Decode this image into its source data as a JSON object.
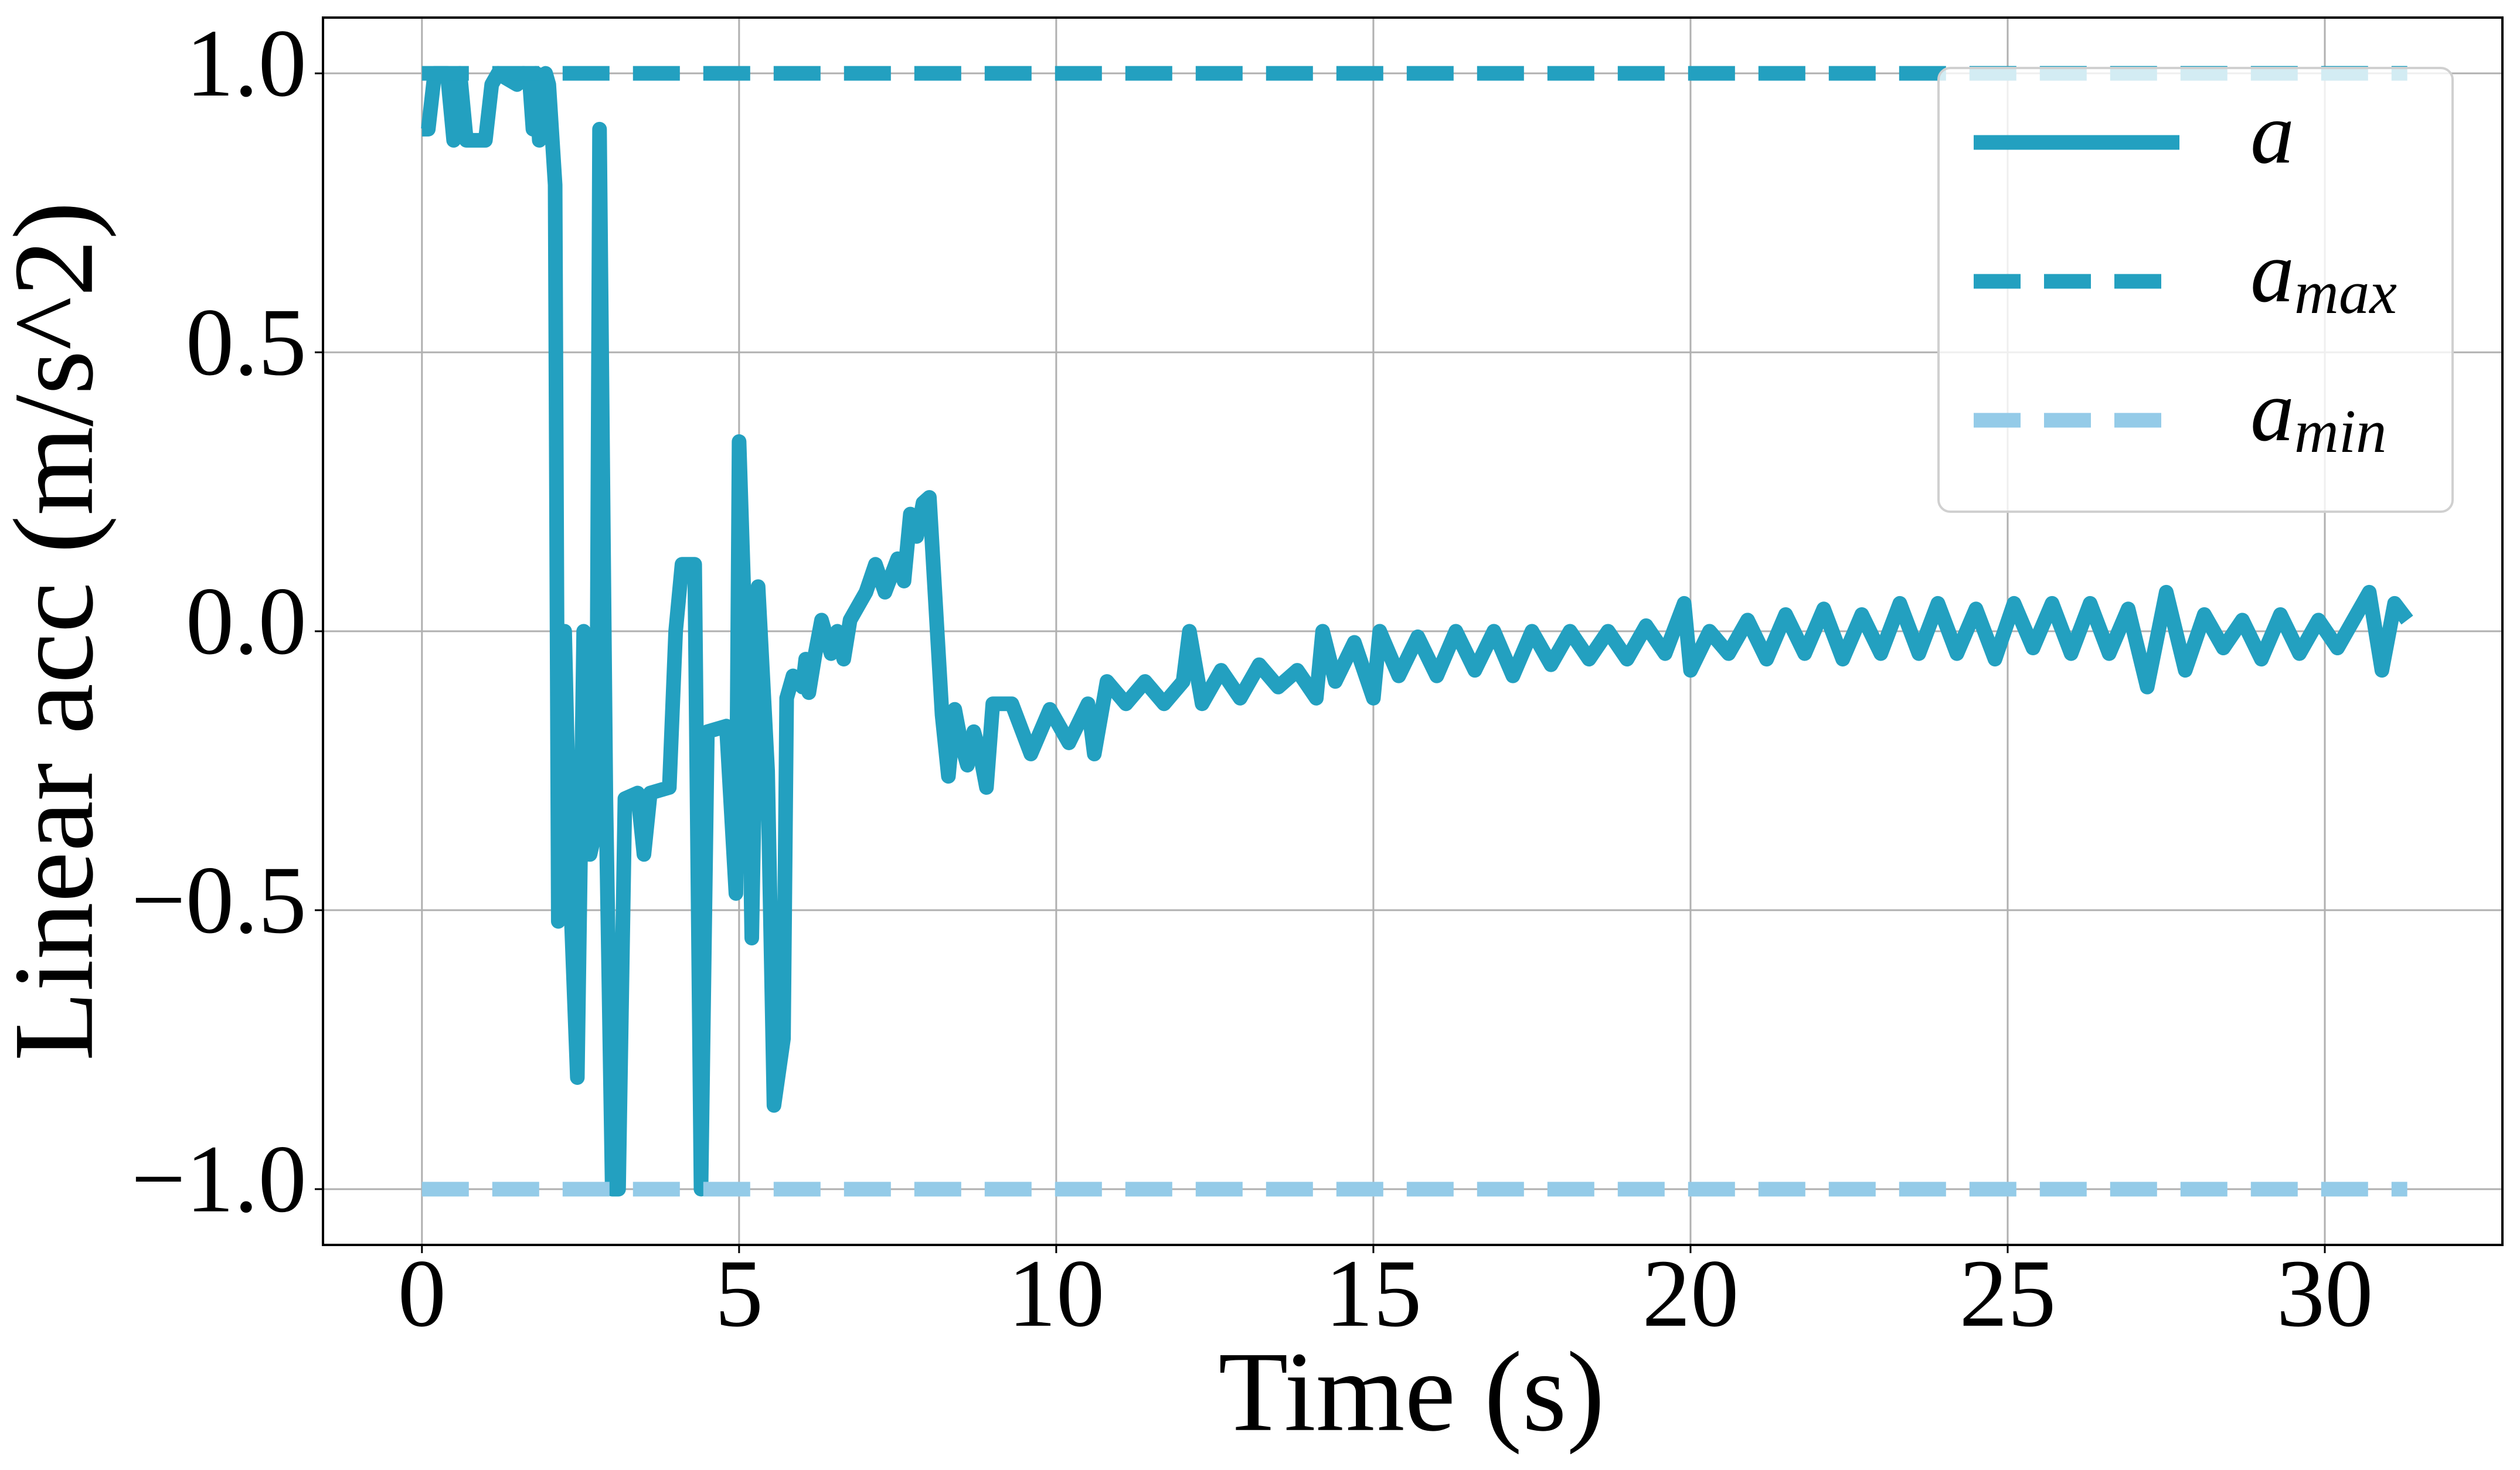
{
  "chart_data": {
    "type": "line",
    "xlabel": "Time (s)",
    "ylabel": "Linear acc (m/s^2)",
    "xlim": [
      -1.56,
      32.8
    ],
    "ylim": [
      -1.1,
      1.1
    ],
    "xticks": [
      0,
      5,
      10,
      15,
      20,
      25,
      30
    ],
    "yticks": [
      {
        "value": -1.0,
        "label": "−1.0"
      },
      {
        "value": -0.5,
        "label": "−0.5"
      },
      {
        "value": 0.0,
        "label": "0.0"
      },
      {
        "value": 0.5,
        "label": "0.5"
      },
      {
        "value": 1.0,
        "label": "1.0"
      }
    ],
    "grid": true,
    "legend": "upper right",
    "series": [
      {
        "name": "a",
        "color": "#23a0c0",
        "dash": "solid",
        "x": [
          0,
          0.1,
          0.2,
          0.4,
          0.5,
          0.6,
          0.7,
          1.0,
          1.1,
          1.2,
          1.5,
          1.6,
          1.7,
          1.75,
          1.8,
          1.85,
          1.95,
          2.0,
          2.1,
          2.15,
          2.25,
          2.35,
          2.45,
          2.55,
          2.65,
          2.75,
          2.8,
          2.9,
          3.0,
          3.1,
          3.2,
          3.4,
          3.5,
          3.6,
          3.9,
          4.0,
          4.1,
          4.3,
          4.4,
          4.5,
          4.8,
          4.95,
          5.0,
          5.15,
          5.2,
          5.3,
          5.45,
          5.55,
          5.7,
          5.75,
          5.85,
          6.0,
          6.05,
          6.1,
          6.2,
          6.3,
          6.45,
          6.55,
          6.65,
          6.75,
          7.0,
          7.15,
          7.3,
          7.5,
          7.6,
          7.7,
          7.8,
          7.9,
          8.0,
          8.2,
          8.3,
          8.4,
          8.5,
          8.6,
          8.7,
          8.8,
          8.9,
          9.0,
          9.3,
          9.6,
          9.9,
          10.2,
          10.5,
          10.6,
          10.8,
          11.1,
          11.4,
          11.7,
          12.0,
          12.1,
          12.3,
          12.6,
          12.9,
          13.2,
          13.5,
          13.8,
          14.1,
          14.2,
          14.4,
          14.7,
          15.0,
          15.1,
          15.4,
          15.7,
          16.0,
          16.3,
          16.6,
          16.9,
          17.2,
          17.5,
          17.8,
          18.1,
          18.4,
          18.7,
          19.0,
          19.3,
          19.6,
          19.9,
          20.0,
          20.3,
          20.6,
          20.9,
          21.2,
          21.5,
          21.8,
          22.1,
          22.4,
          22.7,
          23.0,
          23.3,
          23.6,
          23.9,
          24.2,
          24.5,
          24.8,
          25.1,
          25.4,
          25.7,
          26.0,
          26.3,
          26.6,
          26.9,
          27.2,
          27.5,
          27.8,
          28.1,
          28.4,
          28.7,
          29.0,
          29.3,
          29.6,
          29.9,
          30.2,
          30.5,
          30.7,
          30.9,
          31.1,
          31.3
        ],
        "values": [
          0.9,
          0.9,
          1.0,
          1.0,
          0.88,
          1.0,
          0.88,
          0.88,
          0.98,
          1.0,
          0.98,
          1.0,
          0.98,
          0.9,
          1.0,
          0.88,
          1.0,
          0.98,
          0.8,
          -0.52,
          0.0,
          -0.5,
          -0.8,
          0.0,
          -0.4,
          -0.35,
          0.9,
          -0.3,
          -1.0,
          -1.0,
          -0.3,
          -0.29,
          -0.4,
          -0.29,
          -0.28,
          0.0,
          0.12,
          0.12,
          -1.0,
          -0.18,
          -0.17,
          -0.47,
          0.34,
          -0.2,
          -0.55,
          0.08,
          -0.25,
          -0.85,
          -0.73,
          -0.12,
          -0.08,
          -0.1,
          -0.05,
          -0.11,
          -0.04,
          0.02,
          -0.04,
          0.0,
          -0.05,
          0.02,
          0.07,
          0.12,
          0.07,
          0.13,
          0.09,
          0.21,
          0.17,
          0.23,
          0.24,
          -0.15,
          -0.26,
          -0.14,
          -0.2,
          -0.24,
          -0.18,
          -0.22,
          -0.28,
          -0.13,
          -0.13,
          -0.22,
          -0.14,
          -0.2,
          -0.13,
          -0.22,
          -0.09,
          -0.13,
          -0.09,
          -0.13,
          -0.09,
          0.0,
          -0.13,
          -0.07,
          -0.12,
          -0.06,
          -0.1,
          -0.07,
          -0.12,
          0.0,
          -0.09,
          -0.02,
          -0.12,
          0.0,
          -0.08,
          -0.01,
          -0.08,
          0.0,
          -0.07,
          0.0,
          -0.08,
          0.0,
          -0.06,
          0.0,
          -0.05,
          0.0,
          -0.05,
          0.01,
          -0.04,
          0.05,
          -0.07,
          0.0,
          -0.04,
          0.02,
          -0.05,
          0.03,
          -0.04,
          0.04,
          -0.05,
          0.03,
          -0.04,
          0.05,
          -0.04,
          0.05,
          -0.04,
          0.04,
          -0.05,
          0.05,
          -0.03,
          0.05,
          -0.04,
          0.05,
          -0.04,
          0.04,
          -0.1,
          0.07,
          -0.07,
          0.03,
          -0.03,
          0.02,
          -0.05,
          0.03,
          -0.04,
          0.02,
          -0.03,
          0.03,
          0.07,
          -0.07,
          0.05,
          0.02
        ]
      },
      {
        "name": "amax",
        "color": "#23a0c0",
        "dash": "dashed",
        "x": [
          0,
          31.3
        ],
        "values": [
          1.0,
          1.0
        ]
      },
      {
        "name": "amin",
        "color": "#94cbe8",
        "dash": "dashed",
        "x": [
          0,
          31.3
        ],
        "values": [
          -1.0,
          -1.0
        ]
      }
    ]
  }
}
